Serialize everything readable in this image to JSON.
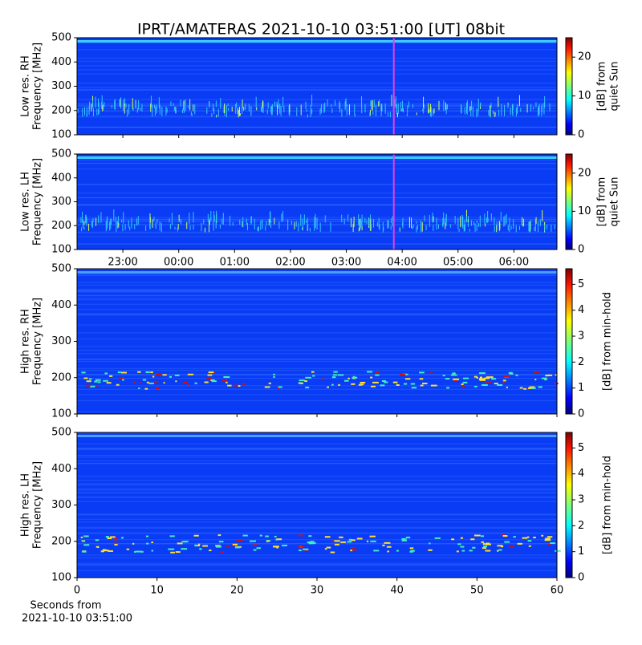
{
  "chart_data": [
    {
      "type": "heatmap",
      "title": "IPRT/AMATERAS 2021-10-10 03:51:00 [UT]   08bit",
      "ylabel": [
        "Low res. RH",
        "Frequency [MHz]"
      ],
      "ylim": [
        100,
        500
      ],
      "yticks": [
        100,
        200,
        300,
        400,
        500
      ],
      "marker_x": 3.85,
      "marker_color": "#e83ee8",
      "colorbar": {
        "label": [
          "[dB] from",
          "quiet Sun"
        ],
        "lim": [
          0,
          25
        ],
        "ticks": [
          0,
          10,
          20
        ],
        "colormap": "jet"
      }
    },
    {
      "type": "heatmap",
      "ylabel": [
        "Low res. LH",
        "Frequency [MHz]"
      ],
      "ylim": [
        100,
        500
      ],
      "yticks": [
        100,
        200,
        300,
        400,
        500
      ],
      "xlim": [
        -1.82,
        6.77
      ],
      "xticks": [
        {
          "value": -1,
          "label": "23:00"
        },
        {
          "value": 0,
          "label": "00:00"
        },
        {
          "value": 1,
          "label": "01:00"
        },
        {
          "value": 2,
          "label": "02:00"
        },
        {
          "value": 3,
          "label": "03:00"
        },
        {
          "value": 4,
          "label": "04:00"
        },
        {
          "value": 5,
          "label": "05:00"
        },
        {
          "value": 6,
          "label": "06:00"
        }
      ],
      "marker_x": 3.85,
      "marker_color": "#e83ee8",
      "colorbar": {
        "label": [
          "[dB] from",
          "quiet Sun"
        ],
        "lim": [
          0,
          25
        ],
        "ticks": [
          0,
          10,
          20
        ],
        "colormap": "jet"
      }
    },
    {
      "type": "heatmap",
      "ylabel": [
        "High res. RH",
        "Frequency [MHz]"
      ],
      "ylim": [
        100,
        500
      ],
      "yticks": [
        100,
        200,
        300,
        400,
        500
      ],
      "colorbar": {
        "label": [
          "[dB] from min-hold"
        ],
        "lim": [
          0,
          5.6
        ],
        "ticks": [
          0,
          1,
          2,
          3,
          4,
          5
        ],
        "colormap": "jet"
      }
    },
    {
      "type": "heatmap",
      "ylabel": [
        "High res. LH",
        "Frequency [MHz]"
      ],
      "ylim": [
        100,
        500
      ],
      "yticks": [
        100,
        200,
        300,
        400,
        500
      ],
      "xlim": [
        0,
        60
      ],
      "xticks": [
        0,
        10,
        20,
        30,
        40,
        50,
        60
      ],
      "xlabel": [
        "Seconds from",
        "2021-10-10 03:51:00"
      ],
      "colorbar": {
        "label": [
          "[dB] from min-hold"
        ],
        "lim": [
          0,
          5.6
        ],
        "ticks": [
          0,
          1,
          2,
          3,
          4,
          5
        ],
        "colormap": "jet"
      }
    }
  ]
}
